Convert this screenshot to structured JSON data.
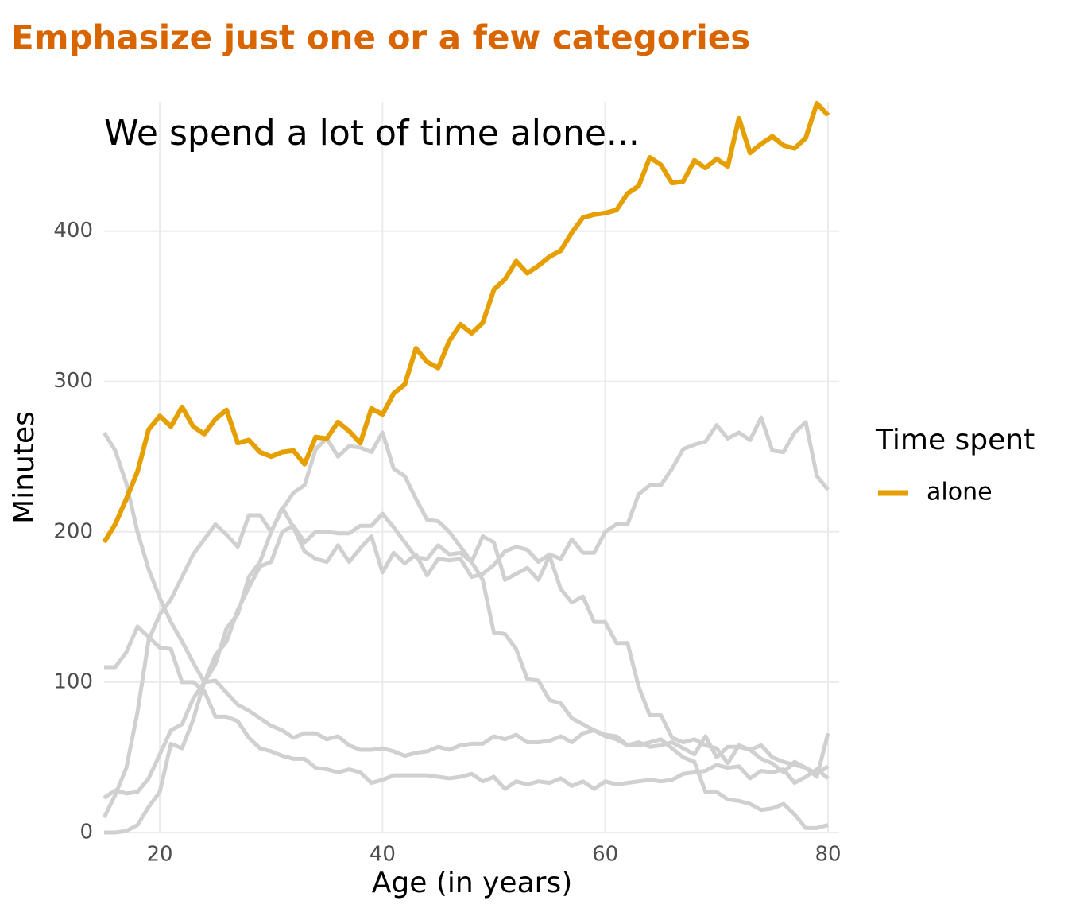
{
  "chart_data": {
    "type": "line",
    "title": "Emphasize just one or a few categories",
    "annotation": "We spend a lot of time alone...",
    "xlabel": "Age (in years)",
    "ylabel": "Minutes",
    "legend_title": "Time spent",
    "legend_position": "right",
    "grid": true,
    "xlim": [
      15,
      81
    ],
    "xticks": [
      20,
      40,
      60,
      80
    ],
    "ylim": [
      0,
      486
    ],
    "yticks": [
      0,
      100,
      200,
      300,
      400
    ],
    "x": [
      15,
      16,
      17,
      18,
      19,
      20,
      21,
      22,
      23,
      24,
      25,
      26,
      27,
      28,
      29,
      30,
      31,
      32,
      33,
      34,
      35,
      36,
      37,
      38,
      39,
      40,
      41,
      42,
      43,
      44,
      45,
      46,
      47,
      48,
      49,
      50,
      51,
      52,
      53,
      54,
      55,
      56,
      57,
      58,
      59,
      60,
      61,
      62,
      63,
      64,
      65,
      66,
      67,
      68,
      69,
      70,
      71,
      72,
      73,
      74,
      75,
      76,
      77,
      78,
      79,
      80
    ],
    "series": [
      {
        "color": "#d0d0d0",
        "values": [
          266,
          254,
          232,
          200,
          175,
          156,
          140,
          127,
          113,
          100,
          101,
          93,
          85,
          81,
          76,
          71,
          68,
          63,
          66,
          66,
          62,
          64,
          58,
          55,
          55,
          56,
          54,
          51,
          53,
          54,
          57,
          55,
          58,
          59,
          59,
          64,
          62,
          65,
          60,
          60,
          61,
          64,
          60,
          66,
          68,
          65,
          64,
          58,
          60,
          57,
          58,
          60,
          56,
          52,
          64,
          50,
          57,
          57,
          55,
          58,
          50,
          47,
          45,
          43,
          39,
          44
        ]
      },
      {
        "color": "#d0d0d0",
        "values": [
          110,
          110,
          120,
          137,
          130,
          123,
          122,
          100,
          100,
          94,
          77,
          77,
          74,
          63,
          56,
          54,
          51,
          49,
          49,
          43,
          42,
          40,
          42,
          40,
          33,
          35,
          38,
          38,
          38,
          38,
          37,
          36,
          37,
          39,
          34,
          37,
          29,
          34,
          32,
          34,
          33,
          36,
          31,
          34,
          29,
          34,
          32,
          33,
          34,
          35,
          34,
          35,
          39,
          40,
          41,
          45,
          43,
          44,
          36,
          41,
          40,
          42,
          33,
          37,
          42,
          36
        ]
      },
      {
        "color": "#d0d0d0",
        "values": [
          10,
          25,
          43,
          80,
          128,
          145,
          155,
          170,
          185,
          195,
          205,
          198,
          190,
          211,
          211,
          200,
          215,
          226,
          231,
          255,
          262,
          250,
          257,
          256,
          253,
          266,
          242,
          237,
          222,
          208,
          207,
          200,
          190,
          180,
          168,
          133,
          132,
          122,
          102,
          101,
          88,
          86,
          76,
          72,
          68,
          64,
          62,
          58,
          58,
          60,
          62,
          56,
          50,
          47,
          27,
          27,
          22,
          21,
          19,
          15,
          16,
          19,
          12,
          3,
          3,
          5
        ]
      },
      {
        "color": "#d0d0d0",
        "values": [
          0,
          0,
          1,
          5,
          17,
          27,
          59,
          56,
          75,
          100,
          118,
          127,
          148,
          163,
          177,
          180,
          200,
          204,
          193,
          200,
          200,
          199,
          199,
          204,
          204,
          212,
          203,
          193,
          183,
          182,
          191,
          185,
          186,
          180,
          197,
          193,
          168,
          172,
          176,
          168,
          184,
          162,
          153,
          157,
          140,
          140,
          126,
          126,
          97,
          78,
          78,
          63,
          60,
          62,
          58,
          56,
          46,
          58,
          55,
          49,
          46,
          40,
          47,
          43,
          37,
          66
        ]
      },
      {
        "color": "#d0d0d0",
        "values": [
          23,
          28,
          26,
          27,
          36,
          52,
          68,
          72,
          89,
          100,
          112,
          136,
          145,
          170,
          180,
          200,
          216,
          203,
          187,
          182,
          180,
          191,
          180,
          189,
          197,
          173,
          186,
          179,
          185,
          171,
          182,
          181,
          182,
          170,
          172,
          178,
          187,
          190,
          188,
          180,
          185,
          182,
          195,
          186,
          186,
          200,
          205,
          205,
          225,
          231,
          231,
          242,
          255,
          258,
          260,
          271,
          262,
          266,
          261,
          276,
          254,
          253,
          266,
          273,
          237,
          228
        ]
      },
      {
        "name": "alone",
        "color": "#e69f00",
        "values": [
          193,
          205,
          222,
          240,
          268,
          277,
          270,
          283,
          270,
          265,
          275,
          281,
          259,
          261,
          253,
          250,
          253,
          254,
          245,
          263,
          262,
          273,
          267,
          259,
          282,
          278,
          292,
          298,
          322,
          313,
          309,
          327,
          338,
          332,
          339,
          361,
          368,
          380,
          372,
          377,
          383,
          387,
          399,
          409,
          411,
          412,
          414,
          425,
          430,
          449,
          444,
          432,
          433,
          447,
          442,
          448,
          443,
          475,
          452,
          458,
          463,
          457,
          455,
          462,
          485,
          477
        ]
      }
    ]
  }
}
